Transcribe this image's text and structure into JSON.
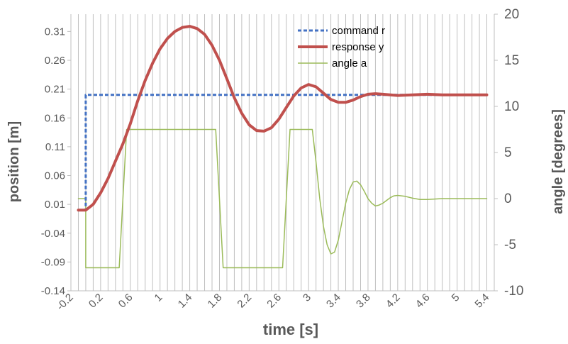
{
  "chart_data": {
    "type": "line",
    "xlabel": "time [s]",
    "ylabel": "position [m]",
    "y2label": "angle [degrees]",
    "xlim": [
      -0.2,
      5.5
    ],
    "ylim": [
      -0.14,
      0.34
    ],
    "y2lim": [
      -10,
      20
    ],
    "x_ticks": [
      "-0.2",
      "0.2",
      "0.6",
      "1",
      "1.4",
      "1.8",
      "2.2",
      "2.6",
      "3",
      "3.4",
      "3.8",
      "4.2",
      "4.6",
      "5",
      "5.4"
    ],
    "y_ticks": [
      "-0.14",
      "-0.09",
      "-0.04",
      "0.01",
      "0.06",
      "0.11",
      "0.16",
      "0.21",
      "0.26",
      "0.31"
    ],
    "y2_ticks": [
      "-10",
      "-5",
      "0",
      "5",
      "10",
      "15",
      "20"
    ],
    "grid": "vertical lines every 0.1 s",
    "legend_position": "top-center",
    "series": [
      {
        "name": "command r",
        "axis": "left",
        "color": "#4472C4",
        "style": "dashed",
        "x": [
          -0.1,
          0.0,
          0.0,
          5.4
        ],
        "y": [
          0.0,
          0.0,
          0.2,
          0.2
        ]
      },
      {
        "name": "response y",
        "axis": "left",
        "color": "#C0504D",
        "style": "solid",
        "x": [
          -0.1,
          0.0,
          0.1,
          0.2,
          0.3,
          0.4,
          0.5,
          0.6,
          0.7,
          0.8,
          0.9,
          1.0,
          1.1,
          1.2,
          1.3,
          1.4,
          1.5,
          1.6,
          1.7,
          1.8,
          1.9,
          2.0,
          2.1,
          2.2,
          2.3,
          2.4,
          2.5,
          2.6,
          2.7,
          2.8,
          2.9,
          3.0,
          3.1,
          3.2,
          3.3,
          3.4,
          3.5,
          3.6,
          3.7,
          3.8,
          3.9,
          4.0,
          4.2,
          4.4,
          4.6,
          4.8,
          5.0,
          5.2,
          5.4
        ],
        "y": [
          0.0,
          0.0,
          0.01,
          0.03,
          0.055,
          0.085,
          0.115,
          0.15,
          0.19,
          0.225,
          0.255,
          0.28,
          0.298,
          0.31,
          0.317,
          0.319,
          0.315,
          0.305,
          0.286,
          0.26,
          0.228,
          0.195,
          0.168,
          0.148,
          0.138,
          0.137,
          0.143,
          0.158,
          0.178,
          0.198,
          0.212,
          0.218,
          0.214,
          0.203,
          0.192,
          0.187,
          0.187,
          0.191,
          0.197,
          0.201,
          0.202,
          0.201,
          0.199,
          0.2,
          0.201,
          0.2,
          0.2,
          0.2,
          0.2
        ]
      },
      {
        "name": "angle a",
        "axis": "right",
        "color": "#9BBB59",
        "style": "solid",
        "x": [
          -0.1,
          0.0,
          0.0,
          0.45,
          0.55,
          1.75,
          1.85,
          2.65,
          2.75,
          3.05,
          3.1,
          3.15,
          3.2,
          3.25,
          3.3,
          3.35,
          3.4,
          3.45,
          3.5,
          3.55,
          3.6,
          3.65,
          3.7,
          3.75,
          3.8,
          3.85,
          3.9,
          3.95,
          4.0,
          4.05,
          4.1,
          4.15,
          4.2,
          4.3,
          4.4,
          4.5,
          4.6,
          4.7,
          4.8,
          4.9,
          5.0,
          5.1,
          5.2,
          5.3,
          5.4
        ],
        "y": [
          0.0,
          0.0,
          -7.5,
          -7.5,
          7.5,
          7.5,
          -7.5,
          -7.5,
          7.5,
          7.5,
          4.0,
          0.0,
          -3.0,
          -5.0,
          -6.0,
          -5.8,
          -4.5,
          -2.5,
          -0.5,
          1.0,
          1.8,
          1.9,
          1.5,
          0.8,
          0.0,
          -0.5,
          -0.8,
          -0.7,
          -0.5,
          -0.2,
          0.1,
          0.3,
          0.35,
          0.25,
          0.05,
          -0.1,
          -0.1,
          -0.05,
          0.0,
          0.0,
          0.0,
          0.0,
          0.0,
          0.0,
          0.0
        ]
      }
    ]
  }
}
